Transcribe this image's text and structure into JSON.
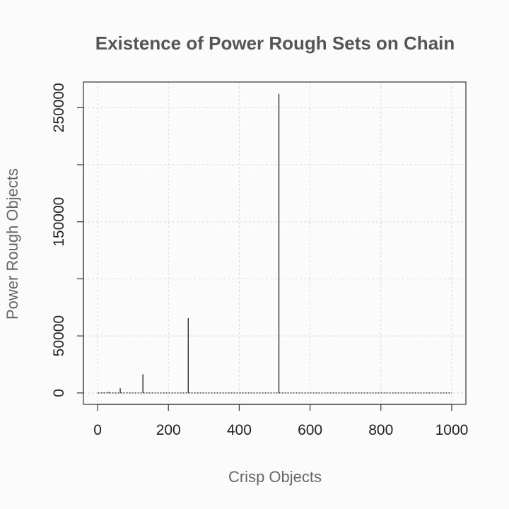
{
  "chart_data": {
    "type": "line",
    "title": "Existence of Power Rough Sets on Chain",
    "xlabel": "Crisp Objects",
    "ylabel": "Power Rough Objects",
    "xlim": [
      -40,
      1040
    ],
    "ylim": [
      -10000,
      272500
    ],
    "x_ticks": [
      0,
      200,
      400,
      600,
      800,
      1000
    ],
    "x_tick_labels": [
      "0",
      "200",
      "400",
      "600",
      "800",
      "1000"
    ],
    "y_ticks": [
      0,
      50000,
      100000,
      150000,
      200000,
      250000
    ],
    "y_tick_labels": [
      "0",
      "50000",
      "",
      "150000",
      "",
      "250000"
    ],
    "grid": true,
    "baseline": {
      "x": [
        1,
        1000
      ],
      "y": 0
    },
    "series": [
      {
        "style": "spikes",
        "x": [
          1,
          2,
          4,
          8,
          16,
          32,
          64,
          128,
          256,
          512
        ],
        "values": [
          2,
          4,
          16,
          64,
          256,
          1024,
          4096,
          16384,
          65536,
          262144
        ]
      }
    ]
  }
}
